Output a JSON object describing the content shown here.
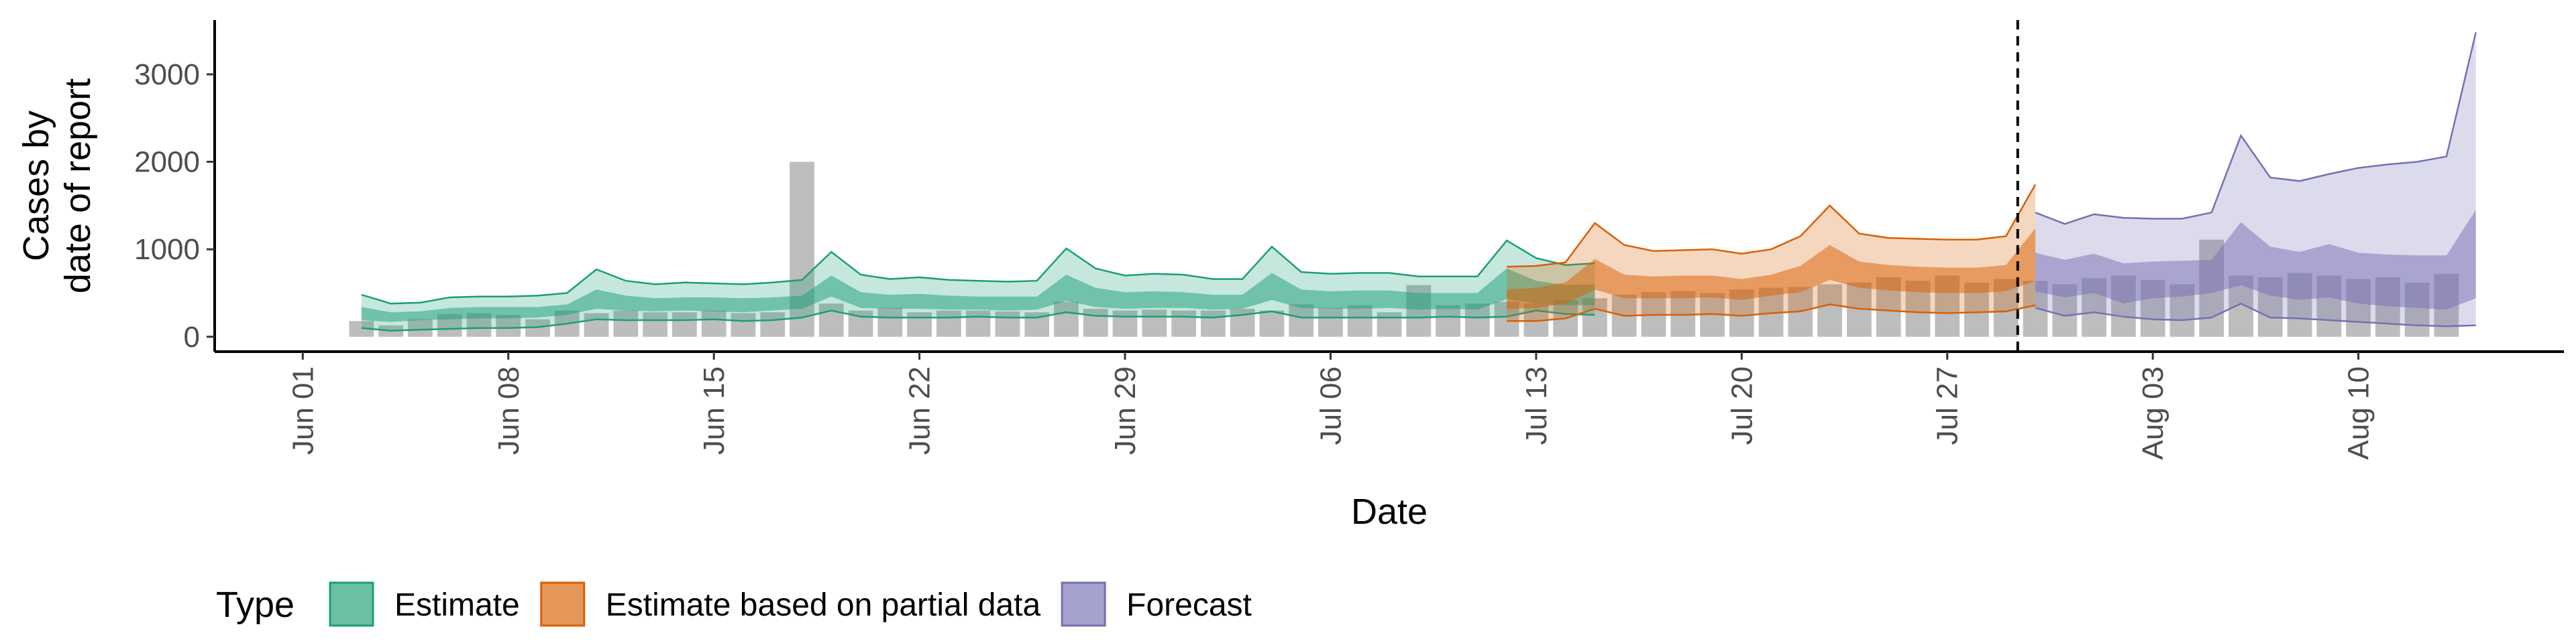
{
  "chart_data": {
    "type": "area",
    "xlabel": "Date",
    "ylabel_lines": [
      "Cases by",
      "date of report"
    ],
    "y_ticks": [
      0,
      1000,
      2000,
      3000
    ],
    "y_tick_labels": [
      "0",
      "1000",
      "2000",
      "3000"
    ],
    "ylim": [
      -170,
      3620
    ],
    "x_start": "2020-05-29",
    "x_ticks": [
      "2020-06-01",
      "2020-06-08",
      "2020-06-15",
      "2020-06-22",
      "2020-06-29",
      "2020-07-06",
      "2020-07-13",
      "2020-07-20",
      "2020-07-27",
      "2020-08-03",
      "2020-08-10"
    ],
    "x_tick_labels": [
      "Jun 01",
      "Jun 08",
      "Jun 15",
      "Jun 22",
      "Jun 29",
      "Jul 06",
      "Jul 13",
      "Jul 20",
      "Jul 27",
      "Aug 03",
      "Aug 10"
    ],
    "xlim": [
      "2020-05-29",
      "2020-08-17"
    ],
    "vline_date": "2020-07-29",
    "bar_color": "#bdbdbd",
    "bars": {
      "start_date": "2020-06-03",
      "values": [
        180,
        130,
        200,
        260,
        270,
        250,
        200,
        300,
        270,
        300,
        280,
        280,
        300,
        270,
        280,
        2000,
        380,
        300,
        330,
        280,
        300,
        300,
        290,
        280,
        400,
        320,
        300,
        310,
        300,
        300,
        320,
        300,
        370,
        330,
        360,
        280,
        590,
        360,
        380,
        400,
        380,
        420,
        440,
        480,
        510,
        520,
        500,
        540,
        560,
        570,
        600,
        620,
        680,
        640,
        700,
        620,
        660,
        640,
        600,
        670,
        700,
        650,
        600,
        1110,
        700,
        680,
        730,
        700,
        660,
        680,
        620,
        720
      ]
    },
    "series": [
      {
        "name": "Estimate",
        "color": "#1b9e77",
        "start_date": "2020-06-03",
        "outer_low": [
          100,
          70,
          80,
          90,
          100,
          100,
          110,
          150,
          200,
          190,
          190,
          190,
          200,
          180,
          190,
          220,
          300,
          230,
          220,
          220,
          220,
          230,
          220,
          220,
          280,
          240,
          230,
          230,
          230,
          220,
          250,
          290,
          220,
          220,
          220,
          220,
          220,
          230,
          220,
          230,
          300,
          260,
          250
        ],
        "outer_high": [
          480,
          380,
          390,
          450,
          460,
          460,
          470,
          500,
          770,
          640,
          600,
          620,
          610,
          600,
          620,
          650,
          970,
          710,
          660,
          680,
          650,
          640,
          630,
          640,
          1010,
          780,
          700,
          720,
          710,
          660,
          660,
          1030,
          740,
          720,
          730,
          730,
          690,
          690,
          690,
          1100,
          900,
          820,
          840
        ],
        "inner_low": [
          190,
          170,
          190,
          200,
          210,
          210,
          220,
          250,
          320,
          300,
          290,
          300,
          290,
          280,
          300,
          320,
          460,
          330,
          320,
          320,
          310,
          310,
          300,
          310,
          410,
          340,
          320,
          330,
          330,
          310,
          320,
          420,
          330,
          320,
          320,
          330,
          310,
          320,
          310,
          430,
          380,
          360,
          360
        ],
        "inner_high": [
          340,
          280,
          290,
          330,
          340,
          340,
          340,
          370,
          540,
          470,
          440,
          450,
          450,
          440,
          450,
          470,
          700,
          510,
          480,
          490,
          470,
          460,
          460,
          460,
          710,
          560,
          510,
          520,
          510,
          480,
          480,
          730,
          540,
          520,
          530,
          530,
          500,
          500,
          500,
          780,
          640,
          590,
          600
        ]
      },
      {
        "name": "Estimate based on partial data",
        "color": "#d95f02",
        "start_date": "2020-07-12",
        "outer_low": [
          180,
          180,
          210,
          320,
          240,
          250,
          250,
          260,
          240,
          270,
          290,
          370,
          320,
          300,
          280,
          270,
          280,
          290,
          360
        ],
        "outer_high": [
          800,
          810,
          850,
          1300,
          1050,
          980,
          990,
          1000,
          950,
          1000,
          1150,
          1500,
          1180,
          1130,
          1120,
          1110,
          1110,
          1150,
          1740
        ],
        "inner_low": [
          320,
          330,
          380,
          540,
          440,
          440,
          440,
          450,
          420,
          470,
          510,
          650,
          560,
          530,
          510,
          500,
          500,
          520,
          640
        ],
        "inner_high": [
          540,
          560,
          620,
          890,
          710,
          690,
          700,
          700,
          660,
          710,
          810,
          1050,
          860,
          820,
          800,
          790,
          790,
          820,
          1240
        ]
      },
      {
        "name": "Forecast",
        "color": "#7570b3",
        "start_date": "2020-07-30",
        "outer_low": [
          330,
          240,
          280,
          230,
          200,
          190,
          220,
          380,
          220,
          210,
          190,
          170,
          150,
          130,
          120,
          130
        ],
        "outer_high": [
          1420,
          1290,
          1400,
          1360,
          1350,
          1350,
          1420,
          2300,
          1820,
          1780,
          1860,
          1930,
          1970,
          2000,
          2060,
          3480
        ],
        "inner_low": [
          520,
          450,
          500,
          380,
          440,
          460,
          500,
          590,
          470,
          420,
          450,
          380,
          350,
          330,
          310,
          440
        ],
        "inner_high": [
          960,
          880,
          950,
          840,
          860,
          870,
          880,
          1310,
          1030,
          970,
          1060,
          960,
          940,
          930,
          930,
          1450
        ]
      }
    ],
    "legend": {
      "title": "Type",
      "position": "bottom",
      "items": [
        "Estimate",
        "Estimate based on partial data",
        "Forecast"
      ]
    }
  }
}
